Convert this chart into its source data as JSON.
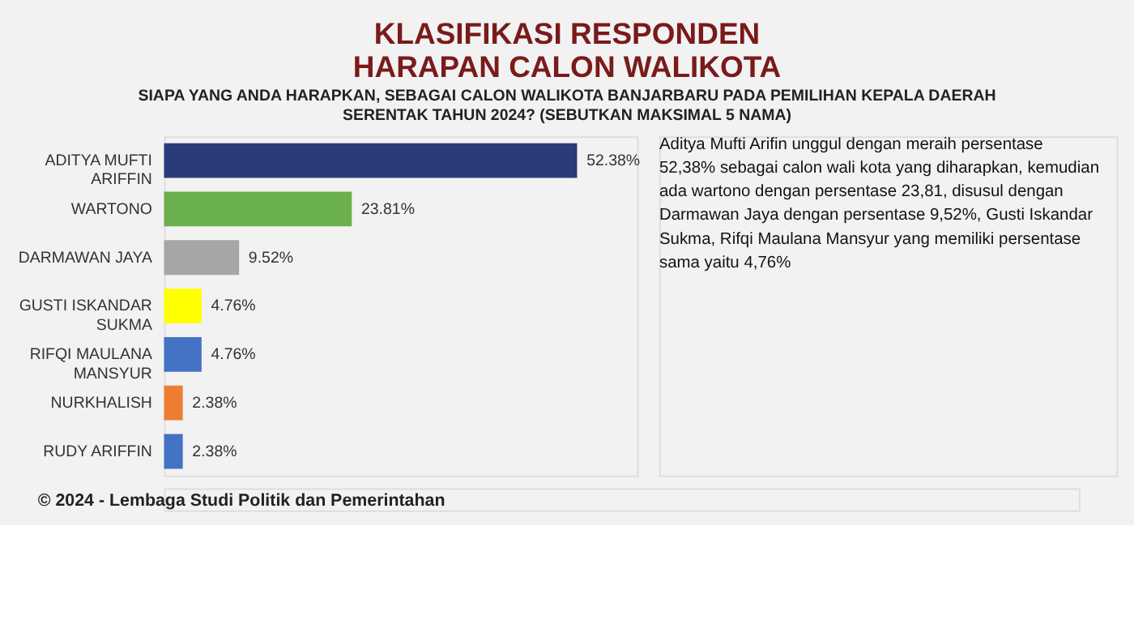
{
  "chart_data": {
    "type": "bar",
    "orientation": "horizontal",
    "title": "KLASIFIKASI RESPONDEN HARAPAN CALON WALIKOTA",
    "subtitle": "SIAPA YANG ANDA HARAPKAN, SEBAGAI CALON WALIKOTA BANJARBARU PADA PEMILIHAN KEPALA DAERAH SERENTAK TAHUN 2024? (SEBUTKAN MAKSIMAL 5 NAMA)",
    "categories": [
      "ADITYA MUFTI ARIFFIN",
      "WARTONO",
      "DARMAWAN JAYA",
      "GUSTI ISKANDAR SUKMA",
      "RIFQI MAULANA MANSYUR",
      "NURKHALISH",
      "RUDY ARIFFIN"
    ],
    "values": [
      52.38,
      23.81,
      9.52,
      4.76,
      4.76,
      2.38,
      2.38
    ],
    "colors": [
      "#2b3a78",
      "#6ab04c",
      "#a6a6a6",
      "#ffff00",
      "#4472c4",
      "#ed7d31",
      "#4472c4"
    ],
    "value_labels": [
      "52.38%",
      "23.81%",
      "9.52%",
      "4.76%",
      "4.76%",
      "2.38%",
      "2.38%"
    ],
    "xlim": [
      0,
      60
    ],
    "tick_labels": "y",
    "annotations": [
      "Aditya Mufti Arifin unggul dengan meraih persentase 52,38% sebagai calon wali kota yang diharapkan, kemudian ada wartono dengan persentase 23,81, disusul dengan Darmawan Jaya dengan persentase 9,52%, Gusti Iskandar Sukma, Rifqi Maulana Mansyur yang memiliki persentase sama yaitu 4,76%",
      "© 2024 - Lembaga Studi Politik dan Pemerintahan"
    ]
  }
}
